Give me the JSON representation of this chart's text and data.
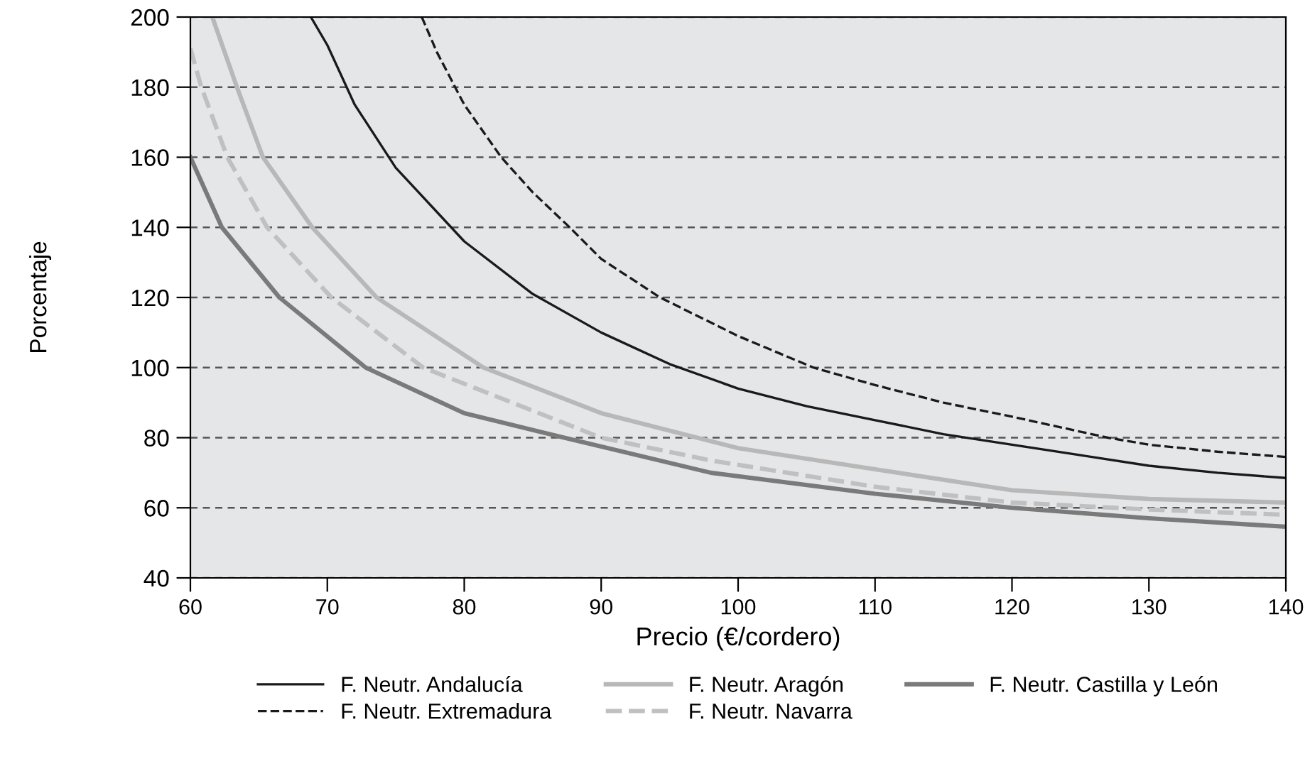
{
  "chart_data": {
    "type": "line",
    "xlabel": "Precio (€/cordero)",
    "ylabel": "Porcentaje",
    "xlim": [
      60,
      140
    ],
    "ylim": [
      40,
      200
    ],
    "xticks": [
      60,
      70,
      80,
      90,
      100,
      110,
      120,
      130,
      140
    ],
    "yticks": [
      40,
      60,
      80,
      100,
      120,
      140,
      160,
      180,
      200
    ],
    "grid": "y",
    "legend": "bottom",
    "marker": "none",
    "series": [
      {
        "name": "F. Neutr. Andalucía",
        "color": "#1a1a1a",
        "line_style": "solid",
        "x": [
          68.8,
          70,
          72,
          75,
          80,
          85,
          90,
          95,
          100,
          105,
          110,
          115,
          120,
          125,
          130,
          135,
          140
        ],
        "values": [
          200,
          192,
          175,
          157,
          136,
          121,
          110,
          101,
          94,
          89,
          85,
          81,
          78,
          75,
          72,
          70,
          68.5
        ]
      },
      {
        "name": "F. Neutr. Aragón",
        "color": "#b8b8b8",
        "line_style": "solid",
        "x": [
          61.6,
          63.4,
          65.3,
          68.9,
          73.6,
          81.4,
          90,
          100,
          110,
          120,
          130,
          140
        ],
        "values": [
          200,
          180,
          160,
          140,
          120,
          100,
          87,
          77,
          71,
          65,
          62.5,
          61.5
        ]
      },
      {
        "name": "F. Neutr. Castilla y León",
        "color": "#7a7a7a",
        "line_style": "solid",
        "x": [
          60,
          62.3,
          66.5,
          72.8,
          80,
          87.3,
          98,
          110,
          120,
          130,
          140
        ],
        "values": [
          160,
          140,
          120,
          100,
          87,
          80,
          70,
          64,
          60,
          57,
          54.6
        ]
      },
      {
        "name": "F. Neutr. Extremadura",
        "color": "#1a1a1a",
        "line_style": "dashed",
        "x": [
          76.9,
          78,
          80,
          82.7,
          85,
          87.7,
          90,
          94.3,
          100,
          105.5,
          110,
          115,
          120,
          127,
          130,
          135,
          140
        ],
        "values": [
          200,
          190,
          175,
          160,
          150,
          140,
          131,
          120,
          109,
          100,
          95,
          90,
          86,
          80,
          78,
          76,
          74.5
        ]
      },
      {
        "name": "F. Neutr. Navarra",
        "color": "#c0c0c0",
        "line_style": "dashed",
        "x": [
          60,
          60.8,
          62.7,
          65.6,
          70.3,
          77,
          90,
          98,
          110,
          120,
          130,
          140
        ],
        "values": [
          191,
          180,
          160,
          140,
          120,
          100,
          80,
          73.5,
          66,
          61.5,
          59.5,
          58
        ]
      }
    ]
  }
}
